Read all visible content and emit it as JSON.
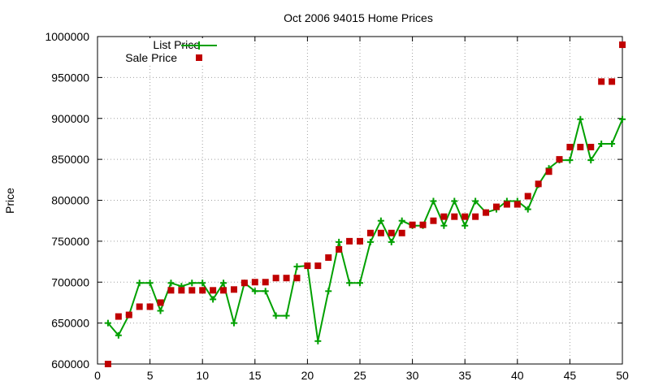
{
  "chart_data": {
    "type": "line",
    "title": "Oct 2006 94015 Home Prices",
    "xlabel": "",
    "ylabel": "Price",
    "xlim": [
      0,
      50
    ],
    "ylim": [
      600000,
      1000000
    ],
    "xticks": [
      0,
      5,
      10,
      15,
      20,
      25,
      30,
      35,
      40,
      45,
      50
    ],
    "yticks": [
      600000,
      650000,
      700000,
      750000,
      800000,
      850000,
      900000,
      950000,
      1000000
    ],
    "grid": true,
    "legend_position": "top-left",
    "series": [
      {
        "name": "List Price",
        "style": "line-plus",
        "color": "#00a000",
        "x": [
          1,
          2,
          3,
          4,
          5,
          6,
          7,
          8,
          9,
          10,
          11,
          12,
          13,
          14,
          15,
          16,
          17,
          18,
          19,
          20,
          21,
          22,
          23,
          24,
          25,
          26,
          27,
          28,
          29,
          30,
          31,
          32,
          33,
          34,
          35,
          36,
          37,
          38,
          39,
          40,
          41,
          42,
          43,
          44,
          45,
          46,
          47,
          48,
          49,
          50
        ],
        "values": [
          650000,
          635000,
          660000,
          699000,
          699000,
          665000,
          699000,
          695000,
          699000,
          699000,
          679000,
          699000,
          650000,
          699000,
          689000,
          689000,
          659000,
          659000,
          719000,
          720000,
          628000,
          689000,
          749000,
          699000,
          699000,
          749000,
          775000,
          749000,
          775000,
          769000,
          769000,
          799000,
          769000,
          799000,
          769000,
          799000,
          785000,
          789000,
          799000,
          799000,
          789000,
          819000,
          839000,
          849000,
          849000,
          899000,
          849000,
          869000,
          869000,
          899000
        ]
      },
      {
        "name": "Sale Price",
        "style": "square-marker",
        "color": "#c00000",
        "x": [
          1,
          2,
          3,
          4,
          5,
          6,
          7,
          8,
          9,
          10,
          11,
          12,
          13,
          14,
          15,
          16,
          17,
          18,
          19,
          20,
          21,
          22,
          23,
          24,
          25,
          26,
          27,
          28,
          29,
          30,
          31,
          32,
          33,
          34,
          35,
          36,
          37,
          38,
          39,
          40,
          41,
          42,
          43,
          44,
          45,
          46,
          47,
          48,
          49,
          50
        ],
        "values": [
          600000,
          658000,
          660000,
          670000,
          670000,
          675000,
          690000,
          690000,
          690000,
          690000,
          690000,
          690000,
          691000,
          699000,
          700000,
          700000,
          705000,
          705000,
          705000,
          720000,
          720000,
          730000,
          740000,
          750000,
          750000,
          760000,
          760000,
          760000,
          760000,
          770000,
          770000,
          775000,
          780000,
          780000,
          780000,
          780000,
          785000,
          792000,
          795000,
          795000,
          805000,
          820000,
          835000,
          850000,
          865000,
          865000,
          865000,
          945000,
          945000,
          990000
        ]
      }
    ]
  }
}
